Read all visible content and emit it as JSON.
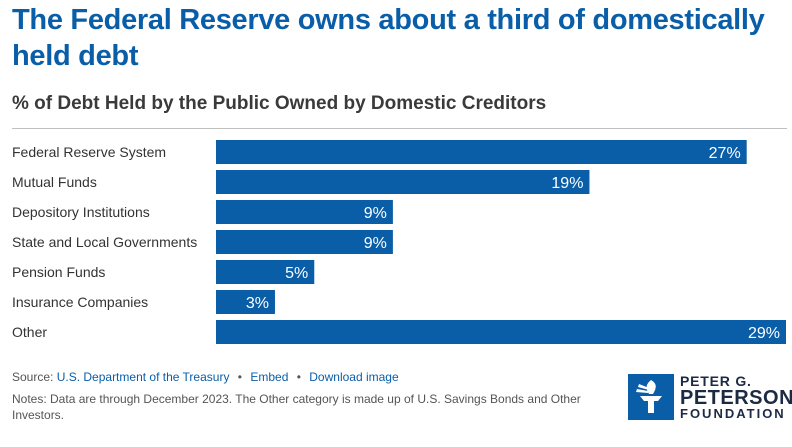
{
  "header": {
    "title": "The Federal Reserve owns about a third of domestically held debt",
    "subtitle": "% of Debt Held by the Public Owned by Domestic Creditors"
  },
  "colors": {
    "accent": "#0a5ea8",
    "bar": "#0a5ea8",
    "bar_label": "#ffffff",
    "title": "#0a5ea8"
  },
  "chart_data": {
    "type": "bar",
    "orientation": "horizontal",
    "categories": [
      "Federal Reserve System",
      "Mutual Funds",
      "Depository Institutions",
      "State and Local Governments",
      "Pension Funds",
      "Insurance Companies",
      "Other"
    ],
    "values": [
      27,
      19,
      9,
      9,
      5,
      3,
      29
    ],
    "value_labels": [
      "27%",
      "19%",
      "9%",
      "9%",
      "5%",
      "3%",
      "29%"
    ],
    "unit": "%",
    "xlim": [
      0,
      29
    ],
    "title": "The Federal Reserve owns about a third of domestically held debt",
    "subtitle": "% of Debt Held by the Public Owned by Domestic Creditors",
    "grid": false,
    "legend": "none"
  },
  "footer": {
    "source_label": "Source:",
    "source_link": "U.S. Department of the Treasury",
    "embed_link": "Embed",
    "download_link": "Download image",
    "separator": "•",
    "notes": "Notes: Data are through December 2023. The Other category is made up of U.S. Savings Bonds and Other Investors."
  },
  "logo": {
    "line1": "PETER G.",
    "line2": "PETERSON",
    "line3": "FOUNDATION",
    "icon": "torch-icon"
  }
}
